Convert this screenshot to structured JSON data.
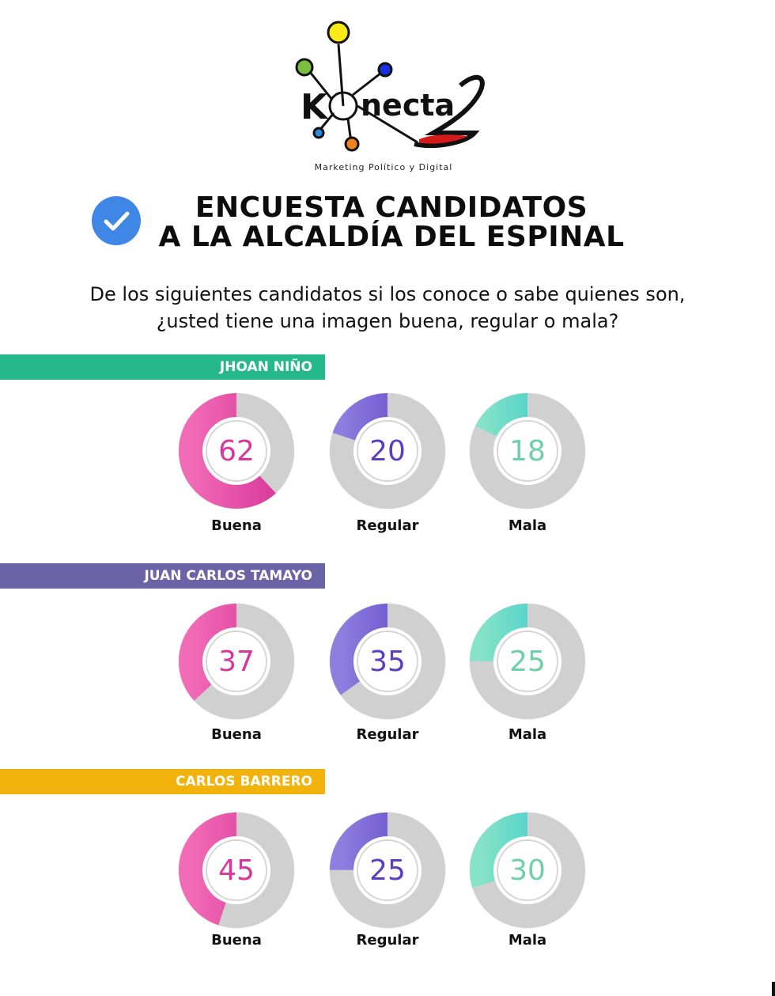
{
  "brand": {
    "name": "Konecta",
    "tagline": "Marketing Político y Digital"
  },
  "title": {
    "line1": "ENCUESTA CANDIDATOS",
    "line2": "A LA ALCALDÍA DEL ESPINAL"
  },
  "question": {
    "line1": "De los siguientes candidatos si los conoce o sabe quienes son,",
    "line2": "¿usted tiene una imagen buena, regular o mala?"
  },
  "colors": {
    "buena": "#d8369a",
    "regular": "#5b3fbf",
    "mala": "#2cc6cf",
    "track": "#d0d0d0"
  },
  "chart_data": [
    {
      "type": "pie",
      "title": "JHOAN NIÑO",
      "banner_color": "#25b888",
      "categories": [
        "Buena",
        "Regular",
        "Mala"
      ],
      "values": [
        62,
        20,
        18
      ]
    },
    {
      "type": "pie",
      "title": "JUAN CARLOS TAMAYO",
      "banner_color": "#6a63a6",
      "categories": [
        "Buena",
        "Regular",
        "Mala"
      ],
      "values": [
        37,
        35,
        25
      ]
    },
    {
      "type": "pie",
      "title": "CARLOS BARRERO",
      "banner_color": "#f2b20c",
      "categories": [
        "Buena",
        "Regular",
        "Mala"
      ],
      "values": [
        45,
        25,
        30
      ]
    }
  ]
}
